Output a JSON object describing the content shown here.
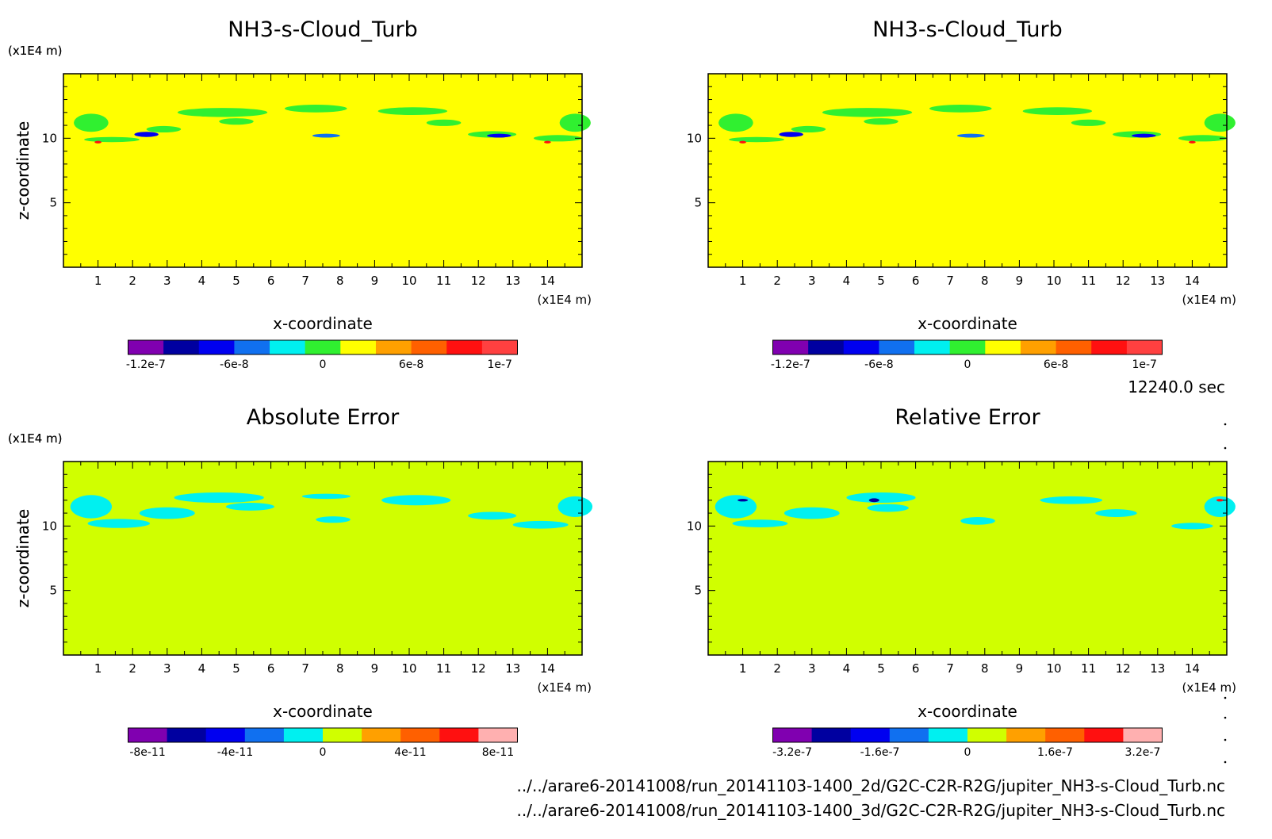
{
  "time_label": "12240.0 sec",
  "footer": {
    "line1": "../../arare6-20141008/run_20141103-1400_2d/G2C-C2R-R2G/jupiter_NH3-s-Cloud_Turb.nc",
    "line2": "../../arare6-20141008/run_20141103-1400_3d/G2C-C2R-R2G/jupiter_NH3-s-Cloud_Turb.nc"
  },
  "chart_data": [
    {
      "type": "heatmap",
      "title": "NH3-s-Cloud_Turb",
      "xlabel": "x-coordinate",
      "ylabel": "z-coordinate",
      "x_unit": "(x1E4 m)",
      "y_unit": "(x1E4 m)",
      "xlim": [
        0,
        15
      ],
      "ylim": [
        0,
        15
      ],
      "xticks": [
        "1",
        "2",
        "3",
        "4",
        "5",
        "6",
        "7",
        "8",
        "9",
        "10",
        "11",
        "12",
        "13",
        "14"
      ],
      "yticks": [
        "5",
        "10"
      ],
      "background_color": "#ffff00",
      "colorbar": {
        "colors": [
          "#8000b0",
          "#0000a0",
          "#0000f0",
          "#1070f0",
          "#00f0f0",
          "#30f030",
          "#ffff00",
          "#ffa000",
          "#ff6000",
          "#ff1010",
          "#ff4040"
        ],
        "labels": [
          "-1.2e-7",
          "-6e-8",
          "0",
          "6e-8",
          "1e-7"
        ]
      },
      "features": [
        {
          "color": "#30f030",
          "x": 0.8,
          "z": 11.2,
          "w": 1.0,
          "h": 1.4
        },
        {
          "color": "#30f030",
          "x": 1.4,
          "z": 9.9,
          "w": 1.6,
          "h": 0.4
        },
        {
          "color": "#30f030",
          "x": 2.9,
          "z": 10.7,
          "w": 1.0,
          "h": 0.5
        },
        {
          "color": "#30f030",
          "x": 4.6,
          "z": 12.0,
          "w": 2.6,
          "h": 0.7
        },
        {
          "color": "#30f030",
          "x": 5.0,
          "z": 11.3,
          "w": 1.0,
          "h": 0.5
        },
        {
          "color": "#30f030",
          "x": 7.3,
          "z": 12.3,
          "w": 1.8,
          "h": 0.6
        },
        {
          "color": "#30f030",
          "x": 10.1,
          "z": 12.1,
          "w": 2.0,
          "h": 0.6
        },
        {
          "color": "#30f030",
          "x": 11.0,
          "z": 11.2,
          "w": 1.0,
          "h": 0.5
        },
        {
          "color": "#30f030",
          "x": 12.4,
          "z": 10.3,
          "w": 1.4,
          "h": 0.5
        },
        {
          "color": "#30f030",
          "x": 14.3,
          "z": 10.0,
          "w": 1.4,
          "h": 0.5
        },
        {
          "color": "#30f030",
          "x": 14.8,
          "z": 11.2,
          "w": 0.9,
          "h": 1.4
        },
        {
          "color": "#0000f0",
          "x": 2.4,
          "z": 10.3,
          "w": 0.7,
          "h": 0.4
        },
        {
          "color": "#1070f0",
          "x": 7.6,
          "z": 10.2,
          "w": 0.8,
          "h": 0.3
        },
        {
          "color": "#0000f0",
          "x": 12.6,
          "z": 10.2,
          "w": 0.7,
          "h": 0.3
        },
        {
          "color": "#ff1010",
          "x": 1.0,
          "z": 9.7,
          "w": 0.2,
          "h": 0.2
        },
        {
          "color": "#ff1010",
          "x": 14.0,
          "z": 9.7,
          "w": 0.2,
          "h": 0.2
        }
      ]
    },
    {
      "type": "heatmap",
      "title": "NH3-s-Cloud_Turb",
      "xlabel": "x-coordinate",
      "ylabel": "z-coordinate",
      "x_unit": "(x1E4 m)",
      "y_unit": "(x1E4 m)",
      "xlim": [
        0,
        15
      ],
      "ylim": [
        0,
        15
      ],
      "xticks": [
        "1",
        "2",
        "3",
        "4",
        "5",
        "6",
        "7",
        "8",
        "9",
        "10",
        "11",
        "12",
        "13",
        "14"
      ],
      "yticks": [
        "5",
        "10"
      ],
      "background_color": "#ffff00",
      "colorbar": {
        "colors": [
          "#8000b0",
          "#0000a0",
          "#0000f0",
          "#1070f0",
          "#00f0f0",
          "#30f030",
          "#ffff00",
          "#ffa000",
          "#ff6000",
          "#ff1010",
          "#ff4040"
        ],
        "labels": [
          "-1.2e-7",
          "-6e-8",
          "0",
          "6e-8",
          "1e-7"
        ]
      },
      "features": [
        {
          "color": "#30f030",
          "x": 0.8,
          "z": 11.2,
          "w": 1.0,
          "h": 1.4
        },
        {
          "color": "#30f030",
          "x": 1.4,
          "z": 9.9,
          "w": 1.6,
          "h": 0.4
        },
        {
          "color": "#30f030",
          "x": 2.9,
          "z": 10.7,
          "w": 1.0,
          "h": 0.5
        },
        {
          "color": "#30f030",
          "x": 4.6,
          "z": 12.0,
          "w": 2.6,
          "h": 0.7
        },
        {
          "color": "#30f030",
          "x": 5.0,
          "z": 11.3,
          "w": 1.0,
          "h": 0.5
        },
        {
          "color": "#30f030",
          "x": 7.3,
          "z": 12.3,
          "w": 1.8,
          "h": 0.6
        },
        {
          "color": "#30f030",
          "x": 10.1,
          "z": 12.1,
          "w": 2.0,
          "h": 0.6
        },
        {
          "color": "#30f030",
          "x": 11.0,
          "z": 11.2,
          "w": 1.0,
          "h": 0.5
        },
        {
          "color": "#30f030",
          "x": 12.4,
          "z": 10.3,
          "w": 1.4,
          "h": 0.5
        },
        {
          "color": "#30f030",
          "x": 14.3,
          "z": 10.0,
          "w": 1.4,
          "h": 0.5
        },
        {
          "color": "#30f030",
          "x": 14.8,
          "z": 11.2,
          "w": 0.9,
          "h": 1.4
        },
        {
          "color": "#0000f0",
          "x": 2.4,
          "z": 10.3,
          "w": 0.7,
          "h": 0.4
        },
        {
          "color": "#1070f0",
          "x": 7.6,
          "z": 10.2,
          "w": 0.8,
          "h": 0.3
        },
        {
          "color": "#0000f0",
          "x": 12.6,
          "z": 10.2,
          "w": 0.7,
          "h": 0.3
        },
        {
          "color": "#ff1010",
          "x": 1.0,
          "z": 9.7,
          "w": 0.2,
          "h": 0.2
        },
        {
          "color": "#ff1010",
          "x": 14.0,
          "z": 9.7,
          "w": 0.2,
          "h": 0.2
        }
      ]
    },
    {
      "type": "heatmap",
      "title": "Absolute Error",
      "xlabel": "x-coordinate",
      "ylabel": "z-coordinate",
      "x_unit": "(x1E4 m)",
      "y_unit": "(x1E4 m)",
      "xlim": [
        0,
        15
      ],
      "ylim": [
        0,
        15
      ],
      "xticks": [
        "1",
        "2",
        "3",
        "4",
        "5",
        "6",
        "7",
        "8",
        "9",
        "10",
        "11",
        "12",
        "13",
        "14"
      ],
      "yticks": [
        "5",
        "10"
      ],
      "background_color": "#d0ff00",
      "colorbar": {
        "colors": [
          "#8000b0",
          "#0000a0",
          "#0000f0",
          "#1070f0",
          "#00f0f0",
          "#d0ff00",
          "#ffa000",
          "#ff6000",
          "#ff1010",
          "#ffb0b0"
        ],
        "labels": [
          "-8e-11",
          "-4e-11",
          "0",
          "4e-11",
          "8e-11"
        ]
      },
      "features": [
        {
          "color": "#00f0f0",
          "x": 0.8,
          "z": 11.5,
          "w": 1.2,
          "h": 1.8
        },
        {
          "color": "#00f0f0",
          "x": 1.6,
          "z": 10.2,
          "w": 1.8,
          "h": 0.7
        },
        {
          "color": "#00f0f0",
          "x": 3.0,
          "z": 11.0,
          "w": 1.6,
          "h": 0.9
        },
        {
          "color": "#00f0f0",
          "x": 4.5,
          "z": 12.2,
          "w": 2.6,
          "h": 0.8
        },
        {
          "color": "#00f0f0",
          "x": 5.4,
          "z": 11.5,
          "w": 1.4,
          "h": 0.6
        },
        {
          "color": "#00f0f0",
          "x": 7.6,
          "z": 12.3,
          "w": 1.4,
          "h": 0.4
        },
        {
          "color": "#00f0f0",
          "x": 7.8,
          "z": 10.5,
          "w": 1.0,
          "h": 0.5
        },
        {
          "color": "#00f0f0",
          "x": 10.2,
          "z": 12.0,
          "w": 2.0,
          "h": 0.8
        },
        {
          "color": "#00f0f0",
          "x": 12.4,
          "z": 10.8,
          "w": 1.4,
          "h": 0.6
        },
        {
          "color": "#00f0f0",
          "x": 13.8,
          "z": 10.1,
          "w": 1.6,
          "h": 0.6
        },
        {
          "color": "#00f0f0",
          "x": 14.8,
          "z": 11.5,
          "w": 1.0,
          "h": 1.6
        }
      ]
    },
    {
      "type": "heatmap",
      "title": "Relative Error",
      "xlabel": "x-coordinate",
      "ylabel": "z-coordinate",
      "x_unit": "(x1E4 m)",
      "y_unit": "(x1E4 m)",
      "xlim": [
        0,
        15
      ],
      "ylim": [
        0,
        15
      ],
      "xticks": [
        "1",
        "2",
        "3",
        "4",
        "5",
        "6",
        "7",
        "8",
        "9",
        "10",
        "11",
        "12",
        "13",
        "14"
      ],
      "yticks": [
        "5",
        "10"
      ],
      "background_color": "#d0ff00",
      "colorbar": {
        "colors": [
          "#8000b0",
          "#0000a0",
          "#0000f0",
          "#1070f0",
          "#00f0f0",
          "#d0ff00",
          "#ffa000",
          "#ff6000",
          "#ff1010",
          "#ffb0b0"
        ],
        "labels": [
          "-3.2e-7",
          "-1.6e-7",
          "0",
          "1.6e-7",
          "3.2e-7"
        ]
      },
      "features": [
        {
          "color": "#00f0f0",
          "x": 0.8,
          "z": 11.5,
          "w": 1.2,
          "h": 1.8
        },
        {
          "color": "#00f0f0",
          "x": 1.5,
          "z": 10.2,
          "w": 1.6,
          "h": 0.6
        },
        {
          "color": "#00f0f0",
          "x": 3.0,
          "z": 11.0,
          "w": 1.6,
          "h": 0.9
        },
        {
          "color": "#00f0f0",
          "x": 5.0,
          "z": 12.2,
          "w": 2.0,
          "h": 0.8
        },
        {
          "color": "#00f0f0",
          "x": 5.2,
          "z": 11.4,
          "w": 1.2,
          "h": 0.6
        },
        {
          "color": "#00f0f0",
          "x": 7.8,
          "z": 10.4,
          "w": 1.0,
          "h": 0.6
        },
        {
          "color": "#00f0f0",
          "x": 10.5,
          "z": 12.0,
          "w": 1.8,
          "h": 0.6
        },
        {
          "color": "#00f0f0",
          "x": 11.8,
          "z": 11.0,
          "w": 1.2,
          "h": 0.6
        },
        {
          "color": "#00f0f0",
          "x": 14.0,
          "z": 10.0,
          "w": 1.2,
          "h": 0.5
        },
        {
          "color": "#00f0f0",
          "x": 14.8,
          "z": 11.5,
          "w": 0.9,
          "h": 1.6
        },
        {
          "color": "#0000a0",
          "x": 1.0,
          "z": 12.0,
          "w": 0.3,
          "h": 0.2
        },
        {
          "color": "#0000a0",
          "x": 4.8,
          "z": 12.0,
          "w": 0.3,
          "h": 0.3
        },
        {
          "color": "#ff1010",
          "x": 14.8,
          "z": 12.0,
          "w": 0.2,
          "h": 0.2
        }
      ]
    }
  ]
}
